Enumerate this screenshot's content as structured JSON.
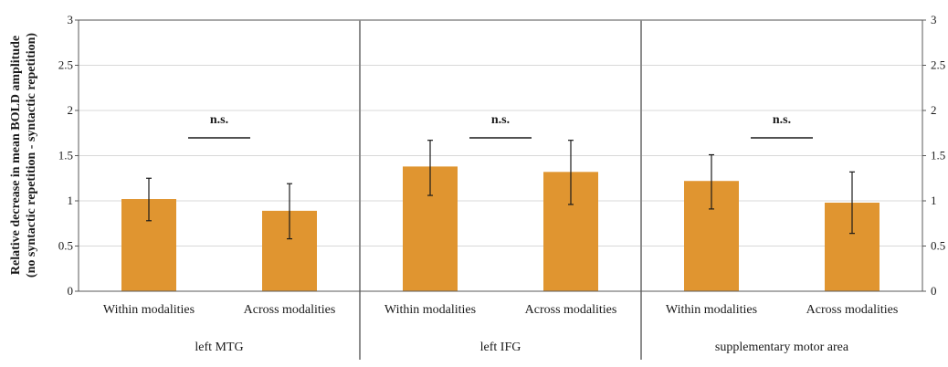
{
  "chart_data": {
    "type": "bar",
    "ylabel_line1": "Relative decrease in mean BOLD amplitude",
    "ylabel_line2": "(no syntactic repetition - syntactic repetition)",
    "ylim": [
      0,
      3
    ],
    "yticks": [
      "0",
      "0.5",
      "1",
      "1.5",
      "2",
      "2.5",
      "3"
    ],
    "grid": true,
    "bar_color": "#e09530",
    "groups": [
      {
        "name": "left MTG",
        "categories": [
          "Within modalities",
          "Across modalities"
        ],
        "values": [
          1.02,
          0.89
        ],
        "error_low": [
          0.78,
          0.58
        ],
        "error_high": [
          1.25,
          1.19
        ],
        "annotation": "n.s."
      },
      {
        "name": "left IFG",
        "categories": [
          "Within modalities",
          "Across modalities"
        ],
        "values": [
          1.38,
          1.32
        ],
        "error_low": [
          1.06,
          0.96
        ],
        "error_high": [
          1.67,
          1.67
        ],
        "annotation": "n.s."
      },
      {
        "name": "supplementary motor area",
        "categories": [
          "Within modalities",
          "Across modalities"
        ],
        "values": [
          1.22,
          0.98
        ],
        "error_low": [
          0.91,
          0.64
        ],
        "error_high": [
          1.51,
          1.32
        ],
        "annotation": "n.s."
      }
    ]
  }
}
